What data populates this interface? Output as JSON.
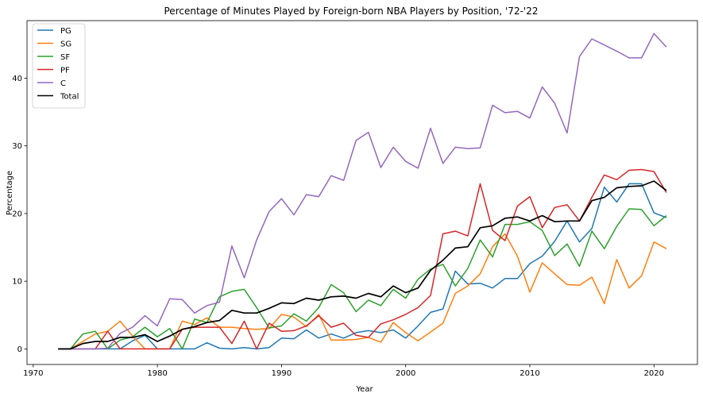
{
  "chart_data": {
    "type": "line",
    "title": "Percentage of Minutes Played by Foreign-born NBA Players by Position, '72-'22",
    "xlabel": "Year",
    "ylabel": "Percentage",
    "xlim": [
      1969.5,
      2023.5
    ],
    "ylim": [
      -2.3,
      48.5
    ],
    "x_ticks": [
      1970,
      1980,
      1990,
      2000,
      2010,
      2020
    ],
    "y_ticks": [
      0,
      10,
      20,
      30,
      40
    ],
    "grid": false,
    "legend_position": "top-left",
    "x": [
      1972,
      1973,
      1974,
      1975,
      1976,
      1977,
      1978,
      1979,
      1980,
      1981,
      1982,
      1983,
      1984,
      1985,
      1986,
      1987,
      1988,
      1989,
      1990,
      1991,
      1992,
      1993,
      1994,
      1995,
      1996,
      1997,
      1998,
      1999,
      2000,
      2001,
      2002,
      2003,
      2004,
      2005,
      2006,
      2007,
      2008,
      2009,
      2010,
      2011,
      2012,
      2013,
      2014,
      2015,
      2016,
      2017,
      2018,
      2019,
      2020,
      2021
    ],
    "series": [
      {
        "name": "PG",
        "color": "#1f77b4",
        "values": [
          0,
          0,
          0,
          0,
          0,
          0,
          1.2,
          2.0,
          0,
          0,
          0,
          0,
          0.9,
          0.1,
          0,
          0.2,
          0,
          0.2,
          1.6,
          1.5,
          2.8,
          1.6,
          2.2,
          1.6,
          2.4,
          2.7,
          2.4,
          2.8,
          1.6,
          3.4,
          5.4,
          5.9,
          11.5,
          9.6,
          9.7,
          9.0,
          10.4,
          10.4,
          12.6,
          13.7,
          15.9,
          18.9,
          15.8,
          17.8,
          23.9,
          21.7,
          24.4,
          24.4,
          20.1,
          19.4
        ]
      },
      {
        "name": "SG",
        "color": "#ff7f0e",
        "values": [
          0,
          0,
          1.1,
          2.2,
          2.6,
          4.1,
          1.9,
          0,
          0,
          0,
          4.1,
          3.6,
          4.6,
          3.2,
          3.2,
          3.0,
          2.9,
          3.0,
          5.1,
          4.7,
          3.3,
          5.1,
          1.3,
          1.3,
          1.4,
          1.7,
          1.0,
          3.9,
          2.4,
          1.2,
          2.5,
          3.8,
          8.2,
          9.3,
          11.1,
          15.1,
          17.0,
          13.7,
          8.4,
          12.7,
          11.1,
          9.5,
          9.4,
          10.6,
          6.7,
          13.2,
          9.0,
          10.8,
          15.8,
          14.8
        ]
      },
      {
        "name": "SF",
        "color": "#2ca02c",
        "values": [
          0,
          0,
          2.2,
          2.6,
          0,
          1.3,
          1.8,
          3.2,
          1.8,
          3.0,
          0,
          4.4,
          3.9,
          7.7,
          8.5,
          8.8,
          6.1,
          3.1,
          3.4,
          5.2,
          4.1,
          6.1,
          9.5,
          8.3,
          5.5,
          7.2,
          6.4,
          8.8,
          7.5,
          10.3,
          11.8,
          12.5,
          9.3,
          11.9,
          16.1,
          13.6,
          18.4,
          18.4,
          18.8,
          17.5,
          13.8,
          15.5,
          12.2,
          17.4,
          14.8,
          18.1,
          20.7,
          20.6,
          18.2,
          19.7
        ]
      },
      {
        "name": "PF",
        "color": "#d62728",
        "values": [
          0,
          0,
          0,
          0,
          2.6,
          0,
          0,
          0,
          0,
          0,
          2.9,
          3.2,
          3.2,
          3.2,
          0.8,
          4.1,
          0,
          3.8,
          2.6,
          2.7,
          3.4,
          4.9,
          3.2,
          3.8,
          2.0,
          1.7,
          3.7,
          4.3,
          5.1,
          6.1,
          7.9,
          17.0,
          17.4,
          16.7,
          24.4,
          17.5,
          16.0,
          21.1,
          22.5,
          17.9,
          20.9,
          21.3,
          18.9,
          22.4,
          25.7,
          25.0,
          26.4,
          26.5,
          26.2,
          23.1
        ]
      },
      {
        "name": "C",
        "color": "#9467bd",
        "values": [
          0,
          0,
          0,
          0,
          0.1,
          2.3,
          3.2,
          4.9,
          3.4,
          7.4,
          7.3,
          5.3,
          6.4,
          6.9,
          15.2,
          10.5,
          16.1,
          20.3,
          22.2,
          19.8,
          22.8,
          22.5,
          25.6,
          24.9,
          30.8,
          32.0,
          26.8,
          29.8,
          27.7,
          26.7,
          32.6,
          27.4,
          29.8,
          29.6,
          29.7,
          36.0,
          34.9,
          35.1,
          34.1,
          38.7,
          36.3,
          31.9,
          43.2,
          45.8,
          44.9,
          44.0,
          43.0,
          43.0,
          46.6,
          44.6
        ]
      },
      {
        "name": "Total",
        "color": "#000000",
        "values": [
          0,
          0,
          0.8,
          1.1,
          1.1,
          1.7,
          1.7,
          2.1,
          1.1,
          1.9,
          2.9,
          3.3,
          3.9,
          4.2,
          5.7,
          5.3,
          5.3,
          6.0,
          6.8,
          6.7,
          7.5,
          7.2,
          7.7,
          7.8,
          7.5,
          8.2,
          7.7,
          9.3,
          8.3,
          9.0,
          11.6,
          13.1,
          14.9,
          15.1,
          17.9,
          18.2,
          19.3,
          19.5,
          18.9,
          19.7,
          18.8,
          18.9,
          18.9,
          21.9,
          22.4,
          23.8,
          24.0,
          24.1,
          24.8,
          23.4
        ]
      }
    ]
  }
}
